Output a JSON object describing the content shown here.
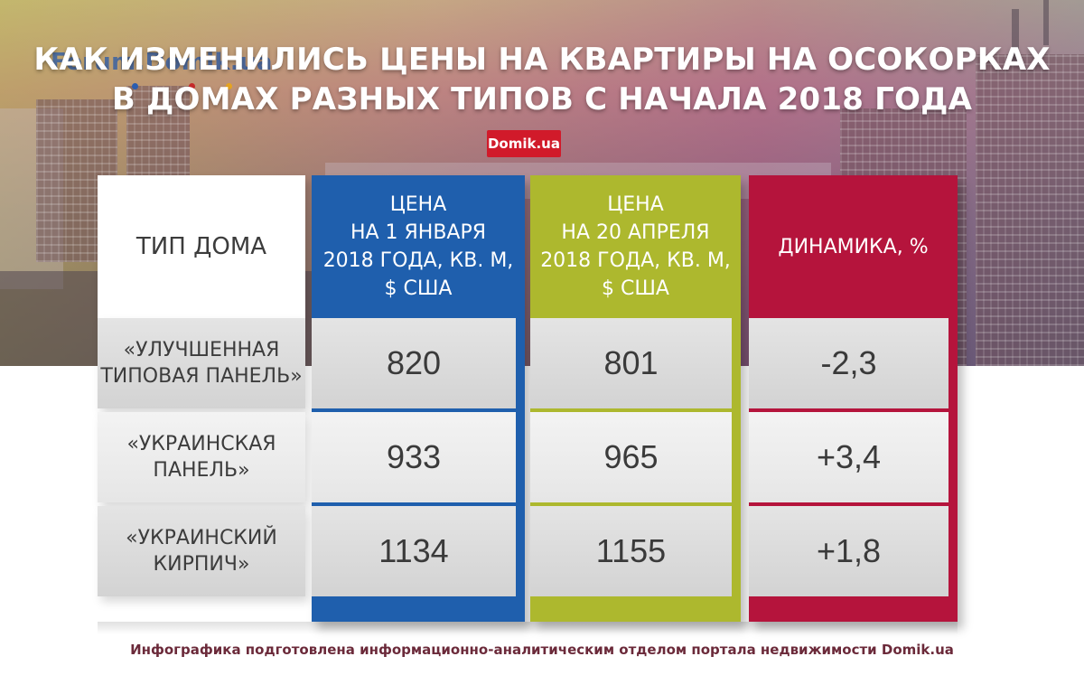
{
  "title": {
    "line1": "КАК ИЗМЕНИЛИСЬ ЦЕНЫ НА КВАРТИРЫ НА ОСОКОРКАХ",
    "line2": "В ДОМАХ РАЗНЫХ ТИПОВ С НАЧАЛА 2018 ГОДА"
  },
  "watermark": "Forum.Domik.ua",
  "badge": "Domik.ua",
  "colors": {
    "jan": "#1f5fad",
    "apr": "#adb82e",
    "dyn": "#b5143c",
    "badge": "#d11a2a"
  },
  "chart_data": {
    "type": "table",
    "columns": [
      "ТИП ДОМА",
      "ЦЕНА НА 1 ЯНВАРЯ 2018 ГОДА, КВ. М, $ США",
      "ЦЕНА НА 20 АПРЕЛЯ 2018 ГОДА, КВ. М, $ США",
      "ДИНАМИКА, %"
    ],
    "header": {
      "type": "ТИП ДОМА",
      "jan_lines": [
        "ЦЕНА",
        "НА 1 ЯНВАРЯ",
        "2018 ГОДА, КВ. М,",
        "$ США"
      ],
      "apr_lines": [
        "ЦЕНА",
        "НА 20 АПРЕЛЯ",
        "2018 ГОДА, КВ. М,",
        "$ США"
      ],
      "dyn": "ДИНАМИКА, %"
    },
    "rows": [
      {
        "type_lines": [
          "«УЛУЧШЕННАЯ",
          "ТИПОВАЯ ПАНЕЛЬ»"
        ],
        "jan": "820",
        "apr": "801",
        "dyn": "-2,3"
      },
      {
        "type_lines": [
          "«УКРАИНСКАЯ",
          "ПАНЕЛЬ»"
        ],
        "jan": "933",
        "apr": "965",
        "dyn": "+3,4"
      },
      {
        "type_lines": [
          "«УКРАИНСКИЙ",
          "КИРПИЧ»"
        ],
        "jan": "1134",
        "apr": "1155",
        "dyn": "+1,8"
      }
    ]
  },
  "footer": "Инфографика подготовлена информационно-аналитическим отделом портала недвижимости Domik.ua"
}
